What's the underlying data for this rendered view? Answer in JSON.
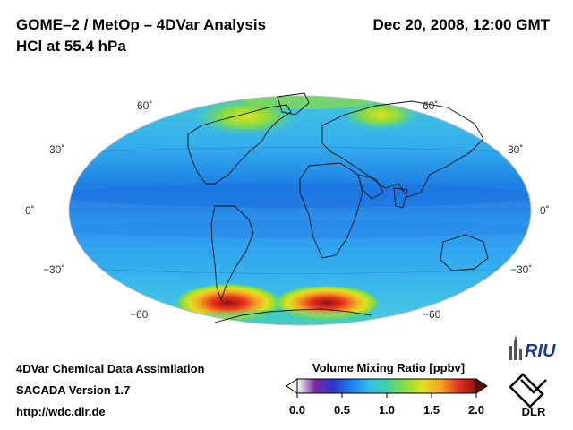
{
  "header": {
    "title_line1": "GOME–2 / MetOp – 4DVar Analysis",
    "title_line2": "HCl at 55.4 hPa",
    "datetime": "Dec 20, 2008, 12:00 GMT"
  },
  "map": {
    "projection": "Hammer-Aitoff (global, centered on 0°)",
    "lat_labels_left": [
      "60˚",
      "30˚",
      "0˚",
      "−30˚",
      "−60"
    ],
    "lat_labels_right": [
      "60˚",
      "30˚",
      "0˚",
      "−30˚",
      "−60"
    ]
  },
  "colorbar": {
    "title": "Volume Mixing Ratio [ppbv]",
    "ticks": [
      "0.0",
      "0.5",
      "1.0",
      "1.5",
      "2.0"
    ],
    "range": [
      0.0,
      2.0
    ],
    "colors": [
      "#ffffff",
      "#7a2aa0",
      "#2a37c8",
      "#1e7ff0",
      "#33bde8",
      "#3fd0a0",
      "#8bdc3c",
      "#e0e020",
      "#f5a623",
      "#e8321e",
      "#8b1010"
    ]
  },
  "footer": {
    "line1": "4DVar Chemical Data Assimilation",
    "line2": "SACADA Version 1.7",
    "line3": "http://wdc.dlr.de"
  },
  "logos": {
    "riu_text": "RIU",
    "dlr_text": "DLR"
  }
}
